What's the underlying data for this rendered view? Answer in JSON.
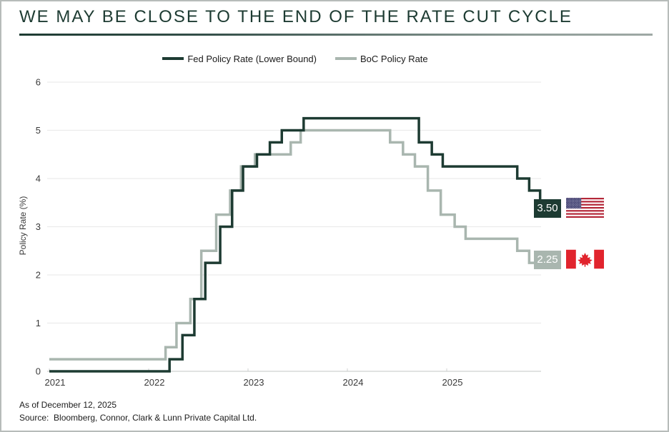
{
  "page": {
    "title": "WE MAY BE CLOSE TO THE END OF THE RATE CUT CYCLE",
    "footnote_asof": "As of December 12, 2025",
    "footnote_source": "Source:  Bloomberg, Connor, Clark & Lunn Private Capital Ltd."
  },
  "chart_data": {
    "type": "line",
    "subtype": "step",
    "title": "WE MAY BE CLOSE TO THE END OF THE RATE CUT CYCLE",
    "xlabel": "",
    "ylabel": "Policy Rate (%)",
    "xlim": [
      2021,
      2025.97
    ],
    "ylim": [
      0,
      6
    ],
    "x_ticks": [
      2021,
      2022,
      2023,
      2024,
      2025
    ],
    "y_ticks": [
      0,
      1,
      2,
      3,
      4,
      5,
      6
    ],
    "grid": "horizontal",
    "legend_position": "top",
    "series": [
      {
        "name": "Fed Policy Rate (Lower Bound)",
        "color": "#1d3b32",
        "end_label": "3.50",
        "end_value": 3.5,
        "flag": "us",
        "points": [
          [
            2021.0,
            0.0
          ],
          [
            2022.21,
            0.25
          ],
          [
            2022.34,
            0.75
          ],
          [
            2022.46,
            1.5
          ],
          [
            2022.57,
            2.25
          ],
          [
            2022.72,
            3.0
          ],
          [
            2022.84,
            3.75
          ],
          [
            2022.95,
            4.25
          ],
          [
            2023.09,
            4.5
          ],
          [
            2023.22,
            4.75
          ],
          [
            2023.34,
            5.0
          ],
          [
            2023.56,
            5.25
          ],
          [
            2024.72,
            4.75
          ],
          [
            2024.85,
            4.5
          ],
          [
            2024.96,
            4.25
          ],
          [
            2025.71,
            4.0
          ],
          [
            2025.83,
            3.75
          ],
          [
            2025.94,
            3.5
          ]
        ]
      },
      {
        "name": "BoC Policy Rate",
        "color": "#a9b6af",
        "end_label": "2.25",
        "end_value": 2.25,
        "flag": "canada",
        "points": [
          [
            2021.0,
            0.25
          ],
          [
            2022.17,
            0.5
          ],
          [
            2022.28,
            1.0
          ],
          [
            2022.42,
            1.5
          ],
          [
            2022.53,
            2.5
          ],
          [
            2022.68,
            3.25
          ],
          [
            2022.82,
            3.75
          ],
          [
            2022.93,
            4.25
          ],
          [
            2023.07,
            4.5
          ],
          [
            2023.43,
            4.75
          ],
          [
            2023.53,
            5.0
          ],
          [
            2024.43,
            4.75
          ],
          [
            2024.56,
            4.5
          ],
          [
            2024.68,
            4.25
          ],
          [
            2024.81,
            3.75
          ],
          [
            2024.94,
            3.25
          ],
          [
            2025.08,
            3.0
          ],
          [
            2025.19,
            2.75
          ],
          [
            2025.71,
            2.5
          ],
          [
            2025.83,
            2.25
          ]
        ]
      }
    ]
  }
}
